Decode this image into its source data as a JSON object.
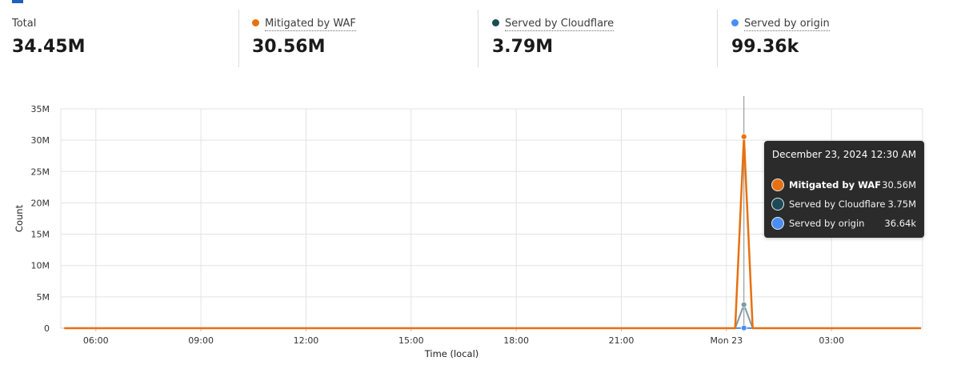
{
  "summary": {
    "total": {
      "label": "Total",
      "value": "34.45M"
    },
    "items": [
      {
        "label": "Mitigated by WAF",
        "value": "30.56M",
        "color": "#e8700e"
      },
      {
        "label": "Served by Cloudflare",
        "value": "3.79M",
        "color": "#1b4b57"
      },
      {
        "label": "Served by origin",
        "value": "99.36k",
        "color": "#4a8ef5"
      }
    ]
  },
  "tooltip": {
    "title": "December 23, 2024 12:30 AM",
    "rows": [
      {
        "name": "Mitigated by WAF",
        "value": "30.56M",
        "color": "#e8700e"
      },
      {
        "name": "Served by Cloudflare",
        "value": "3.75M",
        "color": "#1b4b57"
      },
      {
        "name": "Served by origin",
        "value": "36.64k",
        "color": "#4a8ef5"
      }
    ]
  },
  "chart_data": {
    "type": "line",
    "xlabel": "Time (local)",
    "ylabel": "Count",
    "ylim": [
      0,
      35000000
    ],
    "y_ticks": [
      0,
      5000000,
      10000000,
      15000000,
      20000000,
      25000000,
      30000000,
      35000000
    ],
    "y_tick_labels": [
      "0",
      "5M",
      "10M",
      "15M",
      "20M",
      "25M",
      "30M",
      "35M"
    ],
    "x_ticks": [
      "06:00",
      "09:00",
      "12:00",
      "15:00",
      "18:00",
      "21:00",
      "Mon 23",
      "03:00"
    ],
    "x_range_hours": [
      5,
      29.6
    ],
    "x_tick_hours": [
      6,
      9,
      12,
      15,
      18,
      21,
      24,
      27
    ],
    "hover_hour": 24.5,
    "grid": true,
    "legend": "none",
    "series": [
      {
        "name": "Mitigated by WAF",
        "color": "#e8700e",
        "points": [
          [
            5.1,
            0
          ],
          [
            24.25,
            0
          ],
          [
            24.5,
            30560000
          ],
          [
            24.75,
            0
          ],
          [
            29.55,
            0
          ]
        ]
      },
      {
        "name": "Served by Cloudflare",
        "color": "#7f9aa3",
        "points": [
          [
            5.1,
            0
          ],
          [
            24.25,
            0
          ],
          [
            24.5,
            3750000
          ],
          [
            24.75,
            0
          ],
          [
            29.55,
            0
          ]
        ]
      },
      {
        "name": "Served by origin",
        "color": "#4a8ef5",
        "points": [
          [
            5.1,
            0
          ],
          [
            24.25,
            0
          ],
          [
            24.5,
            36640
          ],
          [
            24.75,
            0
          ],
          [
            29.55,
            0
          ]
        ]
      }
    ]
  }
}
